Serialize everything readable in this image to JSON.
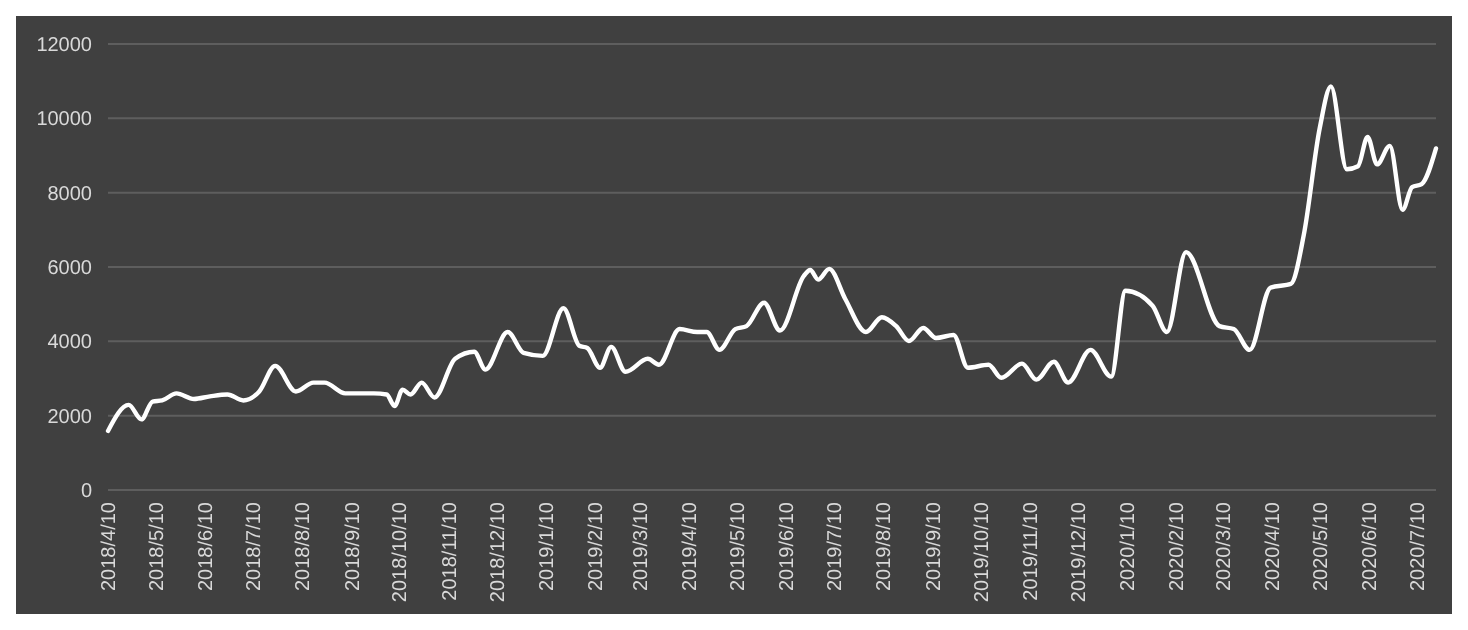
{
  "chart_data": {
    "type": "line",
    "x": [
      "2018-04-10",
      "2018-04-23",
      "2018-05-01",
      "2018-05-08",
      "2018-05-14",
      "2018-05-23",
      "2018-06-03",
      "2018-06-13",
      "2018-06-24",
      "2018-07-04",
      "2018-07-14",
      "2018-07-24",
      "2018-08-06",
      "2018-08-17",
      "2018-08-24",
      "2018-09-06",
      "2018-09-24",
      "2018-10-02",
      "2018-10-07",
      "2018-10-12",
      "2018-10-17",
      "2018-10-24",
      "2018-11-01",
      "2018-11-14",
      "2018-11-26",
      "2018-12-03",
      "2018-12-17",
      "2018-12-27",
      "2019-01-08",
      "2019-01-21",
      "2019-01-31",
      "2019-02-05",
      "2019-02-13",
      "2019-02-20",
      "2019-03-01",
      "2019-03-15",
      "2019-03-22",
      "2019-04-04",
      "2019-04-15",
      "2019-04-21",
      "2019-04-29",
      "2019-05-09",
      "2019-05-16",
      "2019-05-27",
      "2019-06-06",
      "2019-06-21",
      "2019-06-25",
      "2019-06-30",
      "2019-07-07",
      "2019-07-17",
      "2019-07-30",
      "2019-08-09",
      "2019-08-18",
      "2019-08-26",
      "2019-09-04",
      "2019-09-12",
      "2019-09-23",
      "2019-10-02",
      "2019-10-15",
      "2019-10-23",
      "2019-11-05",
      "2019-11-14",
      "2019-11-25",
      "2019-12-04",
      "2019-12-18",
      "2019-12-31",
      "2020-01-09",
      "2020-01-26",
      "2020-02-04",
      "2020-02-16",
      "2020-03-08",
      "2020-03-17",
      "2020-03-27",
      "2020-04-09",
      "2020-04-22",
      "2020-04-30",
      "2020-05-10",
      "2020-05-17",
      "2020-05-27",
      "2020-06-03",
      "2020-06-09",
      "2020-06-15",
      "2020-06-23",
      "2020-07-01",
      "2020-07-07",
      "2020-07-13",
      "2020-07-22"
    ],
    "series": [
      {
        "color": "#ffffff",
        "values": [
          1590,
          2290,
          1900,
          2380,
          2410,
          2600,
          2450,
          2520,
          2570,
          2410,
          2650,
          3340,
          2650,
          2890,
          2890,
          2600,
          2600,
          2570,
          2260,
          2700,
          2570,
          2890,
          2490,
          3530,
          3720,
          3240,
          4250,
          3690,
          3610,
          4890,
          3880,
          3820,
          3290,
          3850,
          3180,
          3530,
          3370,
          4330,
          4250,
          4250,
          3770,
          4330,
          4410,
          5040,
          4290,
          5760,
          5920,
          5660,
          5950,
          5140,
          4250,
          4650,
          4410,
          4010,
          4360,
          4090,
          4170,
          3290,
          3370,
          3020,
          3400,
          2970,
          3450,
          2890,
          3770,
          3050,
          5360,
          4960,
          4250,
          6400,
          4410,
          4330,
          3770,
          5440,
          5550,
          6870,
          9740,
          10860,
          8630,
          8710,
          9500,
          8760,
          9260,
          7540,
          8150,
          8230,
          9190
        ]
      }
    ],
    "xlim": [
      "2018-04-10",
      "2020-07-22"
    ],
    "xticks": [
      {
        "value": "2018-04-10",
        "label": "2018/4/10"
      },
      {
        "value": "2018-05-10",
        "label": "2018/5/10"
      },
      {
        "value": "2018-06-10",
        "label": "2018/6/10"
      },
      {
        "value": "2018-07-10",
        "label": "2018/7/10"
      },
      {
        "value": "2018-08-10",
        "label": "2018/8/10"
      },
      {
        "value": "2018-09-10",
        "label": "2018/9/10"
      },
      {
        "value": "2018-10-10",
        "label": "2018/10/10"
      },
      {
        "value": "2018-11-10",
        "label": "2018/11/10"
      },
      {
        "value": "2018-12-10",
        "label": "2018/12/10"
      },
      {
        "value": "2019-01-10",
        "label": "2019/1/10"
      },
      {
        "value": "2019-02-10",
        "label": "2019/2/10"
      },
      {
        "value": "2019-03-10",
        "label": "2019/3/10"
      },
      {
        "value": "2019-04-10",
        "label": "2019/4/10"
      },
      {
        "value": "2019-05-10",
        "label": "2019/5/10"
      },
      {
        "value": "2019-06-10",
        "label": "2019/6/10"
      },
      {
        "value": "2019-07-10",
        "label": "2019/7/10"
      },
      {
        "value": "2019-08-10",
        "label": "2019/8/10"
      },
      {
        "value": "2019-09-10",
        "label": "2019/9/10"
      },
      {
        "value": "2019-10-10",
        "label": "2019/10/10"
      },
      {
        "value": "2019-11-10",
        "label": "2019/11/10"
      },
      {
        "value": "2019-12-10",
        "label": "2019/12/10"
      },
      {
        "value": "2020-01-10",
        "label": "2020/1/10"
      },
      {
        "value": "2020-02-10",
        "label": "2020/2/10"
      },
      {
        "value": "2020-03-10",
        "label": "2020/3/10"
      },
      {
        "value": "2020-04-10",
        "label": "2020/4/10"
      },
      {
        "value": "2020-05-10",
        "label": "2020/5/10"
      },
      {
        "value": "2020-06-10",
        "label": "2020/6/10"
      },
      {
        "value": "2020-07-10",
        "label": "2020/7/10"
      }
    ],
    "ylim": [
      0,
      12000
    ],
    "yticks": [
      0,
      2000,
      4000,
      6000,
      8000,
      10000,
      12000
    ],
    "grid": "y",
    "marker": "none",
    "line_style": "solid"
  }
}
